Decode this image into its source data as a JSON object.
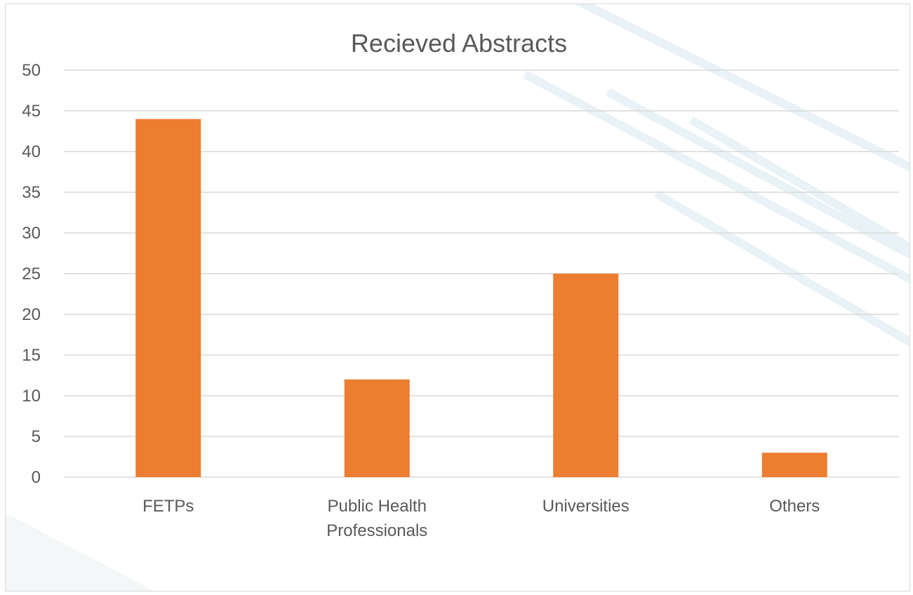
{
  "chart_data": {
    "type": "bar",
    "title": "Recieved Abstracts",
    "xlabel": "",
    "ylabel": "",
    "categories": [
      [
        "FETPs"
      ],
      [
        "Public Health",
        "Professionals"
      ],
      [
        "Universities"
      ],
      [
        "Others"
      ]
    ],
    "values": [
      44,
      12,
      25,
      3
    ],
    "ylim": [
      0,
      50
    ],
    "yticks": [
      0,
      5,
      10,
      15,
      20,
      25,
      30,
      35,
      40,
      45,
      50
    ],
    "grid": true,
    "legend": "none",
    "colors": {
      "bar": "#ED7D31",
      "grid": "#d9d9d9",
      "text": "#595959",
      "decor": "#e9f2f6"
    }
  }
}
